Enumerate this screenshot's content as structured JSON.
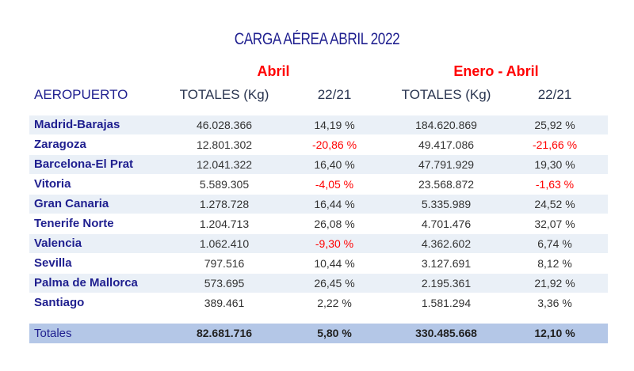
{
  "title": "CARGA AÉREA ABRIL 2022",
  "groups": {
    "april": "Abril",
    "ytd": "Enero - Abril"
  },
  "headers": {
    "airport": "AEROPUERTO",
    "totals1": "TOTALES (Kg)",
    "change1": "22/21",
    "totals2": "TOTALES (Kg)",
    "change2": "22/21"
  },
  "colors": {
    "title": "#1f1f8f",
    "group": "#ff0000",
    "negative": "#ff0000",
    "row_alt": "#eaf0f7",
    "total_row": "#b4c7e7"
  },
  "rows": [
    {
      "airport": "Madrid-Barajas",
      "apr_total": "46.028.366",
      "apr_change": "14,19 %",
      "ytd_total": "184.620.869",
      "ytd_change": "25,92 %"
    },
    {
      "airport": "Zaragoza",
      "apr_total": "12.801.302",
      "apr_change": "-20,86 %",
      "ytd_total": "49.417.086",
      "ytd_change": "-21,66 %"
    },
    {
      "airport": "Barcelona-El Prat",
      "apr_total": "12.041.322",
      "apr_change": "16,40 %",
      "ytd_total": "47.791.929",
      "ytd_change": "19,30 %"
    },
    {
      "airport": "Vitoria",
      "apr_total": "5.589.305",
      "apr_change": "-4,05 %",
      "ytd_total": "23.568.872",
      "ytd_change": "-1,63 %"
    },
    {
      "airport": "Gran Canaria",
      "apr_total": "1.278.728",
      "apr_change": "16,44 %",
      "ytd_total": "5.335.989",
      "ytd_change": "24,52 %"
    },
    {
      "airport": "Tenerife Norte",
      "apr_total": "1.204.713",
      "apr_change": "26,08 %",
      "ytd_total": "4.701.476",
      "ytd_change": "32,07 %"
    },
    {
      "airport": "Valencia",
      "apr_total": "1.062.410",
      "apr_change": "-9,30 %",
      "ytd_total": "4.362.602",
      "ytd_change": "6,74 %"
    },
    {
      "airport": "Sevilla",
      "apr_total": "797.516",
      "apr_change": "10,44 %",
      "ytd_total": "3.127.691",
      "ytd_change": "8,12 %"
    },
    {
      "airport": "Palma de Mallorca",
      "apr_total": "573.695",
      "apr_change": "26,45 %",
      "ytd_total": "2.195.361",
      "ytd_change": "21,92 %"
    },
    {
      "airport": "Santiago",
      "apr_total": "389.461",
      "apr_change": "2,22 %",
      "ytd_total": "1.581.294",
      "ytd_change": "3,36 %"
    }
  ],
  "totals": {
    "label": "Totales",
    "apr_total": "82.681.716",
    "apr_change": "5,80 %",
    "ytd_total": "330.485.668",
    "ytd_change": "12,10 %"
  }
}
